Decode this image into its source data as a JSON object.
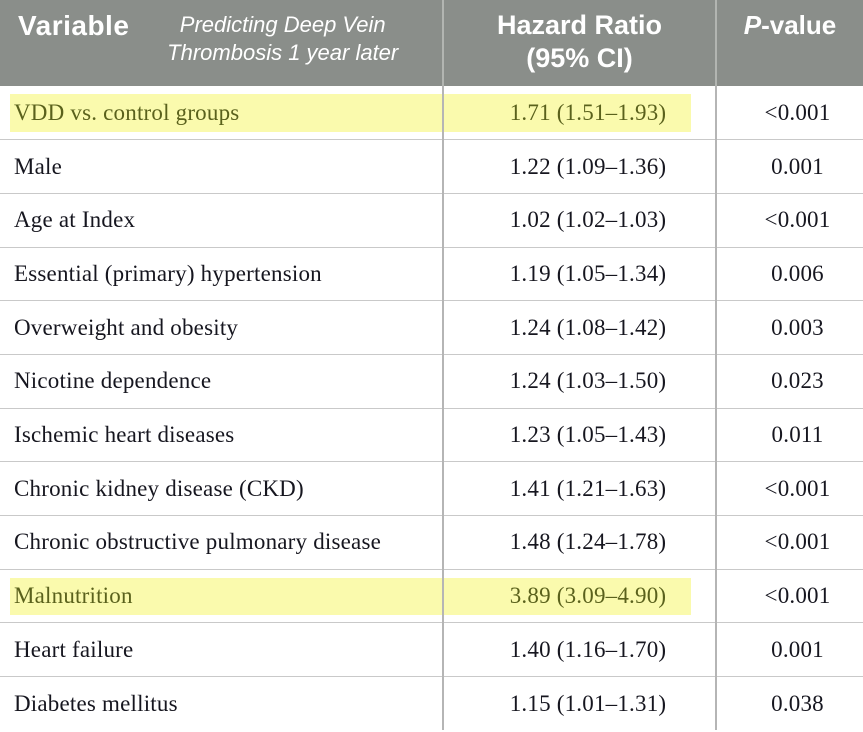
{
  "table": {
    "header": {
      "variable_label": "Variable",
      "subtitle_line1": "Predicting Deep Vein",
      "subtitle_line2": "Thrombosis 1 year later",
      "hazard_ratio_line1": "Hazard Ratio",
      "hazard_ratio_line2": "(95% CI)",
      "p_value_italic": "P",
      "p_value_rest": "-value"
    },
    "rows": [
      {
        "variable": "VDD vs. control groups",
        "hazard_ratio": "1.71 (1.51–1.93)",
        "p_value": "<0.001",
        "highlighted": true
      },
      {
        "variable": "Male",
        "hazard_ratio": "1.22 (1.09–1.36)",
        "p_value": "0.001",
        "highlighted": false
      },
      {
        "variable": "Age at Index",
        "hazard_ratio": "1.02 (1.02–1.03)",
        "p_value": "<0.001",
        "highlighted": false
      },
      {
        "variable": "Essential (primary) hypertension",
        "hazard_ratio": "1.19 (1.05–1.34)",
        "p_value": "0.006",
        "highlighted": false
      },
      {
        "variable": "Overweight and obesity",
        "hazard_ratio": "1.24 (1.08–1.42)",
        "p_value": "0.003",
        "highlighted": false
      },
      {
        "variable": "Nicotine dependence",
        "hazard_ratio": "1.24 (1.03–1.50)",
        "p_value": "0.023",
        "highlighted": false
      },
      {
        "variable": "Ischemic heart diseases",
        "hazard_ratio": "1.23 (1.05–1.43)",
        "p_value": "0.011",
        "highlighted": false
      },
      {
        "variable": "Chronic kidney disease (CKD)",
        "hazard_ratio": "1.41 (1.21–1.63)",
        "p_value": "<0.001",
        "highlighted": false
      },
      {
        "variable": "Chronic obstructive pulmonary disease",
        "hazard_ratio": "1.48 (1.24–1.78)",
        "p_value": "<0.001",
        "highlighted": false
      },
      {
        "variable": "Malnutrition",
        "hazard_ratio": "3.89 (3.09–4.90)",
        "p_value": "<0.001",
        "highlighted": true
      },
      {
        "variable": "Heart failure",
        "hazard_ratio": "1.40 (1.16–1.70)",
        "p_value": "0.001",
        "highlighted": false
      },
      {
        "variable": "Diabetes mellitus",
        "hazard_ratio": "1.15 (1.01–1.31)",
        "p_value": "0.038",
        "highlighted": false
      }
    ],
    "colors": {
      "page_bg": "#ffffff",
      "header_bg": "#8a8e8a",
      "header_text": "#ffffff",
      "header_divider": "#b2b5b1",
      "body_text": "#16161f",
      "row_line": "#c9c9c9",
      "col_line": "#b5b5b5",
      "highlight_bg": "#fafaad",
      "highlight_text": "#5a611c"
    }
  }
}
